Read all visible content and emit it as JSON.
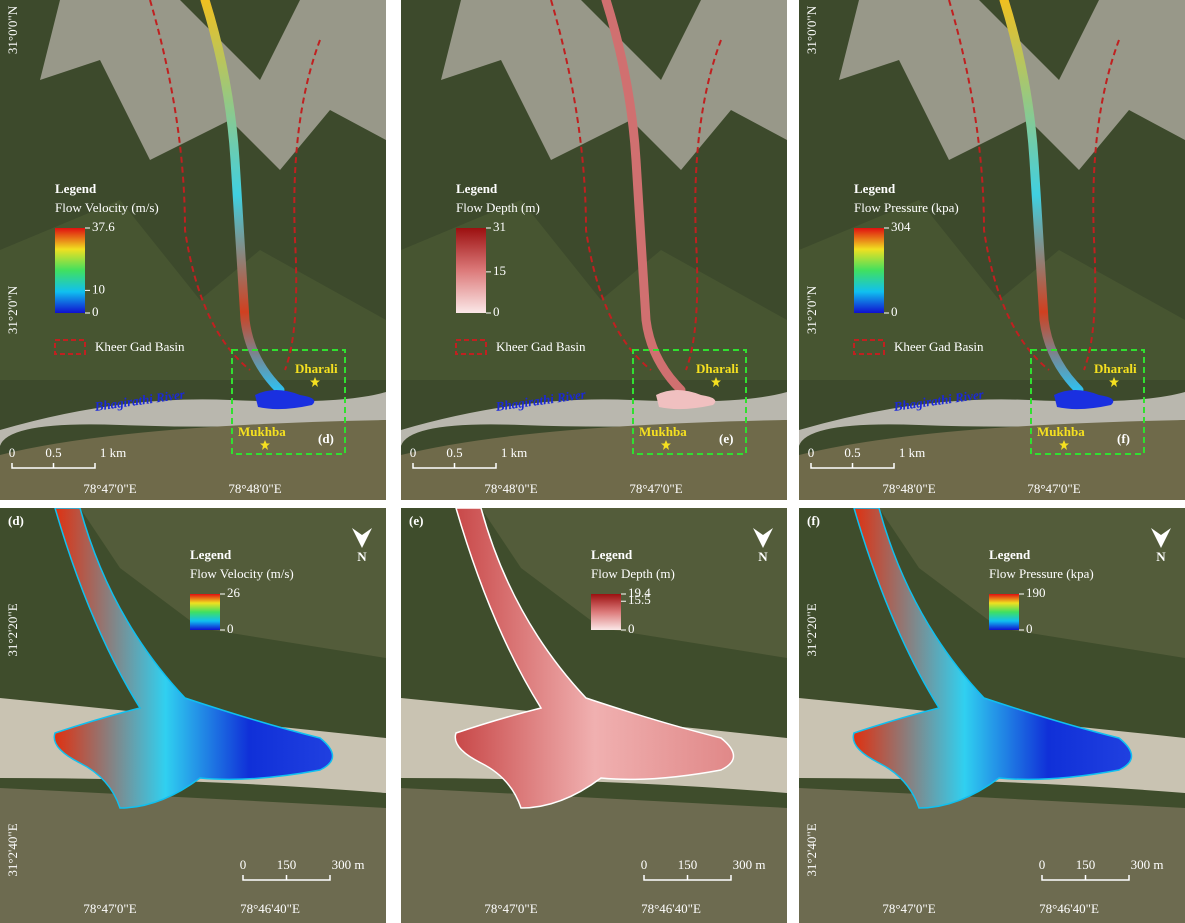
{
  "top_row": [
    {
      "legend": {
        "title": "Legend",
        "variable": "Flow Velocity (m/s)",
        "ticks": [
          37.6,
          10,
          0
        ]
      },
      "colormap": "jet",
      "lat": [
        "31°0'0\"N",
        "31°2'0\"N"
      ],
      "lon": [
        "78°47'0\"E",
        "78°48'0\"E"
      ],
      "basin": "Kheer Gad Basin",
      "river": "Bhagirathi River",
      "places": [
        "Dharali",
        "Mukhba"
      ],
      "box_label": "(d)",
      "scale": [
        "0",
        "0.5",
        "1 km"
      ]
    },
    {
      "legend": {
        "title": "Legend",
        "variable": "Flow Depth (m)",
        "ticks": [
          31,
          15,
          0
        ]
      },
      "colormap": "reds",
      "lat": [],
      "lon": [
        "78°48'0\"E",
        "78°47'0\"E"
      ],
      "basin": "Kheer Gad Basin",
      "river": "Bhagirathi River",
      "places": [
        "Dharali",
        "Mukhba"
      ],
      "box_label": "(e)",
      "scale": [
        "0",
        "0.5",
        "1 km"
      ]
    },
    {
      "legend": {
        "title": "Legend",
        "variable": "Flow Pressure (kpa)",
        "ticks": [
          304,
          0
        ]
      },
      "colormap": "jet",
      "lat": [
        "31°0'0\"N",
        "31°2'0\"N"
      ],
      "lon": [
        "78°48'0\"E",
        "78°47'0\"E"
      ],
      "basin": "Kheer Gad Basin",
      "river": "Bhagirathi River",
      "places": [
        "Dharali",
        "Mukhba"
      ],
      "box_label": "(f)",
      "scale": [
        "0",
        "0.5",
        "1 km"
      ]
    }
  ],
  "bottom_row": [
    {
      "label": "(d)",
      "legend": {
        "title": "Legend",
        "variable": "Flow Velocity (m/s)",
        "ticks": [
          26,
          0
        ]
      },
      "colormap": "jet",
      "north": "N",
      "lat": [
        "31°2'20\"E",
        "31°2'40\"E"
      ],
      "lon": [
        "78°47'0\"E",
        "78°46'40\"E"
      ],
      "scale": [
        "0",
        "150",
        "300 m"
      ]
    },
    {
      "label": "(e)",
      "legend": {
        "title": "Legend",
        "variable": "Flow Depth (m)",
        "ticks": [
          19.4,
          15.5,
          0
        ]
      },
      "colormap": "reds",
      "north": "N",
      "lat": [],
      "lon": [
        "78°47'0\"E",
        "78°46'40\"E"
      ],
      "scale": [
        "0",
        "150",
        "300 m"
      ]
    },
    {
      "label": "(f)",
      "legend": {
        "title": "Legend",
        "variable": "Flow Pressure (kpa)",
        "ticks": [
          190,
          0
        ]
      },
      "colormap": "jet",
      "north": "N",
      "lat": [
        "31°2'20\"E",
        "31°2'40\"E"
      ],
      "lon": [
        "78°47'0\"E",
        "78°46'40\"E"
      ],
      "scale": [
        "0",
        "150",
        "300 m"
      ]
    }
  ]
}
